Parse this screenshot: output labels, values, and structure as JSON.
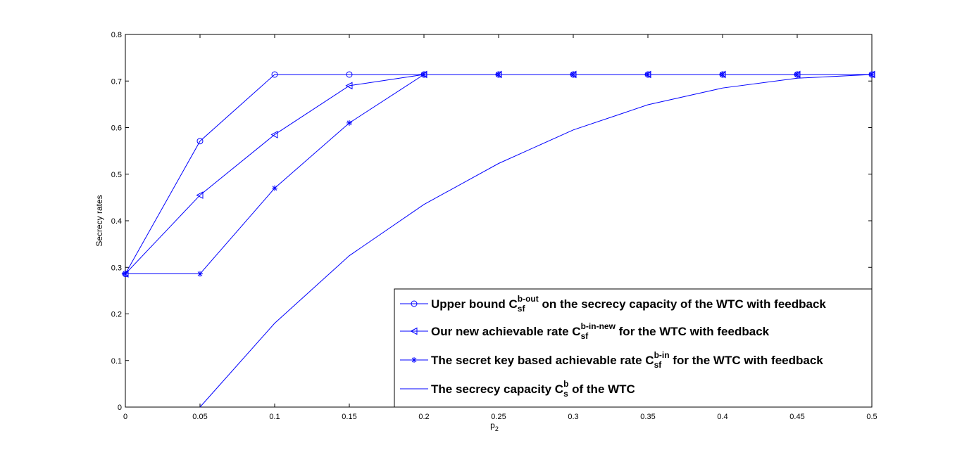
{
  "chart_data": {
    "type": "line",
    "title": "",
    "xlabel": "p",
    "xlabel_sub": "2",
    "ylabel": "Secrecy rates",
    "xlim": [
      0,
      0.5
    ],
    "ylim": [
      0,
      0.8
    ],
    "xticks": [
      0,
      0.05,
      0.1,
      0.15,
      0.2,
      0.25,
      0.3,
      0.35,
      0.4,
      0.45,
      0.5
    ],
    "xtick_labels": [
      "0",
      "0.05",
      "0.1",
      "0.15",
      "0.2",
      "0.25",
      "0.3",
      "0.35",
      "0.4",
      "0.45",
      "0.5"
    ],
    "yticks": [
      0,
      0.1,
      0.2,
      0.3,
      0.4,
      0.5,
      0.6,
      0.7,
      0.8
    ],
    "ytick_labels": [
      "0",
      "0.1",
      "0.2",
      "0.3",
      "0.4",
      "0.5",
      "0.6",
      "0.7",
      "0.8"
    ],
    "grid": false,
    "legend_position": "bottom-right",
    "line_color": "#0000ff",
    "x": [
      0,
      0.05,
      0.1,
      0.15,
      0.2,
      0.25,
      0.3,
      0.35,
      0.4,
      0.45,
      0.5
    ],
    "series": [
      {
        "marker": "circle",
        "legend": {
          "pre": "Upper bound C",
          "sub": "sf",
          "sup": "b-out",
          "post": " on the secrecy capacity of the WTC with feedback"
        },
        "values": [
          0.286,
          0.571,
          0.714,
          0.714,
          0.714,
          0.714,
          0.714,
          0.714,
          0.714,
          0.714,
          0.714
        ]
      },
      {
        "marker": "triangle-left",
        "legend": {
          "pre": "Our new achievable rate C",
          "sub": "sf",
          "sup": "b-in-new",
          "post": " for the WTC with feedback"
        },
        "values": [
          0.286,
          0.455,
          0.585,
          0.69,
          0.714,
          0.714,
          0.714,
          0.714,
          0.714,
          0.714,
          0.714
        ]
      },
      {
        "marker": "star",
        "legend": {
          "pre": "The secret key based achievable rate C",
          "sub": "sf",
          "sup": "b-in",
          "post": " for the WTC with feedback"
        },
        "values": [
          0.286,
          0.286,
          0.47,
          0.61,
          0.714,
          0.714,
          0.714,
          0.714,
          0.714,
          0.714,
          0.714
        ]
      },
      {
        "marker": "none",
        "legend": {
          "pre": "The secrecy capacity C",
          "sub": "s",
          "sup": "b",
          "post": " of the WTC"
        },
        "x": [
          0.05,
          0.1,
          0.15,
          0.2,
          0.25,
          0.3,
          0.35,
          0.4,
          0.45,
          0.5
        ],
        "values": [
          0,
          0.18,
          0.325,
          0.435,
          0.523,
          0.595,
          0.649,
          0.685,
          0.706,
          0.714
        ]
      }
    ]
  }
}
